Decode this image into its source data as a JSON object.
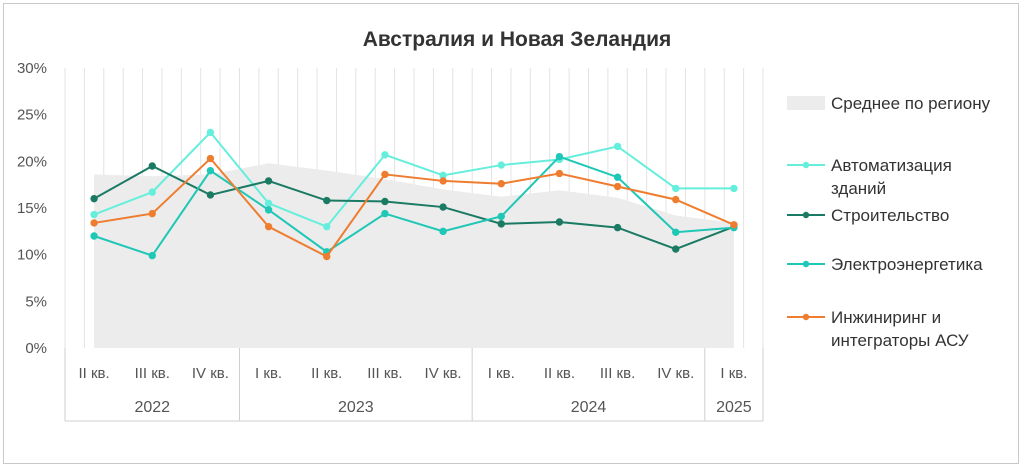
{
  "chart_data": {
    "type": "line",
    "title": "Австралия и Новая Зеландия",
    "xlabel": "",
    "ylabel": "",
    "ylim": [
      0,
      30
    ],
    "y_ticks": [
      "0%",
      "5%",
      "10%",
      "15%",
      "20%",
      "25%",
      "30%"
    ],
    "categories": [
      "II кв.",
      "III кв.",
      "IV кв.",
      "I кв.",
      "II кв.",
      "III кв.",
      "IV кв.",
      "I кв.",
      "II кв.",
      "III кв.",
      "IV кв.",
      "I кв."
    ],
    "years": [
      {
        "label": "2022",
        "count": 3
      },
      {
        "label": "2023",
        "count": 4
      },
      {
        "label": "2024",
        "count": 4
      },
      {
        "label": "2025",
        "count": 1
      }
    ],
    "legend_position": "right",
    "grid": "vertical",
    "area_series": {
      "name": "Среднее по региону",
      "color": "#ececec",
      "values": [
        18.6,
        18.4,
        18.6,
        19.8,
        19.0,
        18.1,
        17.0,
        16.2,
        16.9,
        16.1,
        14.2,
        13.4
      ]
    },
    "series": [
      {
        "name": "Автоматизация зданий",
        "color": "#66eedd",
        "values": [
          14.3,
          16.7,
          23.1,
          15.5,
          13.0,
          20.7,
          18.5,
          19.6,
          20.2,
          21.6,
          17.1,
          17.1
        ]
      },
      {
        "name": "Строительство",
        "color": "#1b7a63",
        "values": [
          16.0,
          19.5,
          16.4,
          17.9,
          15.8,
          15.7,
          15.1,
          13.3,
          13.5,
          12.9,
          10.6,
          13.0
        ]
      },
      {
        "name": "Электроэнергетика",
        "color": "#1fc7b6",
        "values": [
          12.0,
          9.9,
          19.0,
          14.8,
          10.3,
          14.4,
          12.5,
          14.1,
          20.5,
          18.3,
          12.4,
          12.9
        ]
      },
      {
        "name": "Инжиниринг и интеграторы АСУ",
        "color": "#ee7d30",
        "values": [
          13.4,
          14.4,
          20.3,
          13.0,
          9.8,
          18.6,
          17.9,
          17.6,
          18.7,
          17.3,
          15.9,
          13.2
        ]
      }
    ],
    "legend": [
      {
        "lines": [
          "Среднее по региону"
        ]
      },
      {
        "lines": [
          "Автоматизация",
          "зданий"
        ]
      },
      {
        "lines": [
          "Строительство"
        ]
      },
      {
        "lines": [
          "Электроэнергетика"
        ]
      },
      {
        "lines": [
          "Инжиниринг и",
          "интеграторы АСУ"
        ]
      }
    ]
  }
}
